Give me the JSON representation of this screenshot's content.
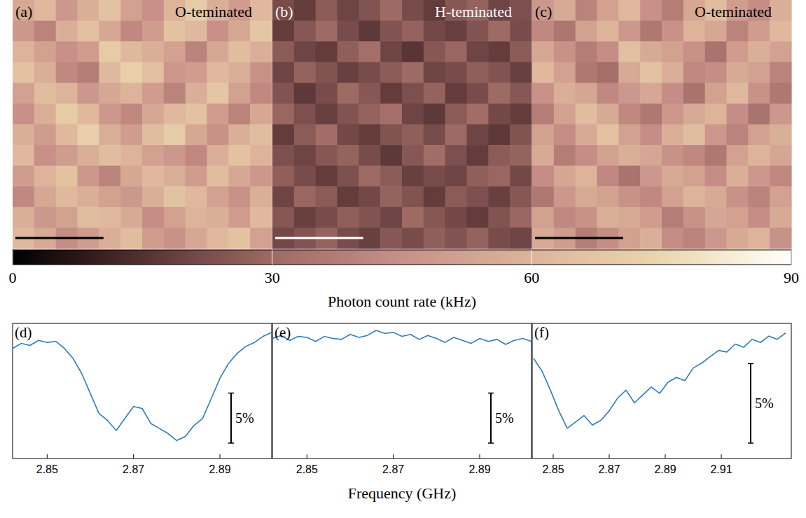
{
  "colorbar": {
    "range": [
      0,
      90
    ],
    "ticks": [
      0,
      30,
      60,
      90
    ],
    "label": "Photon count rate (kHz)"
  },
  "chart_data": [
    {
      "type": "heatmap",
      "panel_label": "(a)",
      "title": "O-teminated",
      "cells": [
        [
          55,
          62,
          48,
          58,
          66,
          52,
          45,
          60,
          70,
          58,
          50,
          62
        ],
        [
          48,
          40,
          58,
          65,
          55,
          42,
          50,
          66,
          62,
          45,
          55,
          68
        ],
        [
          60,
          52,
          45,
          50,
          70,
          62,
          58,
          52,
          40,
          55,
          64,
          58
        ],
        [
          66,
          58,
          42,
          38,
          62,
          72,
          65,
          48,
          50,
          62,
          58,
          46
        ],
        [
          52,
          64,
          60,
          48,
          55,
          60,
          50,
          40,
          58,
          68,
          52,
          42
        ],
        [
          45,
          58,
          70,
          62,
          48,
          42,
          55,
          62,
          66,
          50,
          40,
          55
        ],
        [
          58,
          50,
          62,
          72,
          58,
          50,
          64,
          70,
          55,
          46,
          58,
          64
        ],
        [
          62,
          45,
          50,
          58,
          64,
          60,
          52,
          48,
          42,
          58,
          66,
          60
        ],
        [
          50,
          60,
          66,
          48,
          40,
          55,
          62,
          58,
          50,
          64,
          55,
          48
        ],
        [
          42,
          55,
          62,
          58,
          52,
          48,
          58,
          66,
          62,
          52,
          46,
          58
        ],
        [
          58,
          48,
          52,
          64,
          62,
          56,
          44,
          52,
          60,
          58,
          50,
          62
        ],
        [
          62,
          56,
          44,
          50,
          58,
          64,
          50,
          46,
          55,
          62,
          66,
          52
        ]
      ]
    },
    {
      "type": "heatmap",
      "panel_label": "(b)",
      "title": "H-teminated",
      "cells": [
        [
          22,
          18,
          26,
          20,
          24,
          30,
          22,
          18,
          25,
          28,
          20,
          23
        ],
        [
          18,
          25,
          30,
          22,
          17,
          24,
          28,
          21,
          19,
          24,
          30,
          22
        ],
        [
          26,
          20,
          18,
          27,
          32,
          20,
          16,
          25,
          29,
          20,
          18,
          26
        ],
        [
          20,
          28,
          24,
          19,
          22,
          26,
          30,
          20,
          22,
          27,
          24,
          19
        ],
        [
          24,
          17,
          22,
          30,
          25,
          18,
          23,
          28,
          18,
          22,
          30,
          25
        ],
        [
          29,
          23,
          19,
          24,
          28,
          32,
          20,
          17,
          26,
          31,
          21,
          18
        ],
        [
          18,
          26,
          31,
          21,
          18,
          24,
          27,
          22,
          30,
          20,
          17,
          24
        ],
        [
          23,
          20,
          25,
          28,
          22,
          17,
          25,
          31,
          23,
          18,
          26,
          28
        ],
        [
          27,
          22,
          18,
          23,
          30,
          26,
          19,
          22,
          20,
          27,
          29,
          21
        ],
        [
          20,
          29,
          26,
          18,
          21,
          28,
          24,
          18,
          26,
          23,
          19,
          25
        ],
        [
          25,
          19,
          22,
          27,
          24,
          20,
          30,
          25,
          21,
          18,
          24,
          29
        ],
        [
          21,
          24,
          28,
          22,
          19,
          25,
          22,
          27,
          24,
          28,
          22,
          20
        ]
      ]
    },
    {
      "type": "heatmap",
      "panel_label": "(c)",
      "title": "O-teminated",
      "cells": [
        [
          48,
          56,
          40,
          52,
          62,
          45,
          38,
          55,
          64,
          50,
          44,
          58
        ],
        [
          42,
          35,
          52,
          60,
          48,
          36,
          46,
          60,
          55,
          40,
          50,
          62
        ],
        [
          55,
          46,
          38,
          44,
          65,
          56,
          52,
          46,
          34,
          50,
          58,
          52
        ],
        [
          62,
          52,
          36,
          32,
          56,
          66,
          58,
          42,
          44,
          56,
          52,
          40
        ],
        [
          46,
          58,
          54,
          42,
          48,
          55,
          44,
          34,
          52,
          62,
          46,
          36
        ],
        [
          38,
          52,
          64,
          56,
          42,
          36,
          48,
          56,
          60,
          44,
          34,
          48
        ],
        [
          52,
          44,
          56,
          66,
          52,
          44,
          58,
          64,
          48,
          40,
          52,
          58
        ],
        [
          56,
          38,
          44,
          52,
          58,
          54,
          46,
          42,
          36,
          52,
          60,
          54
        ],
        [
          44,
          54,
          60,
          42,
          34,
          48,
          56,
          52,
          44,
          58,
          48,
          42
        ],
        [
          36,
          48,
          56,
          52,
          46,
          42,
          52,
          60,
          56,
          46,
          40,
          52
        ],
        [
          52,
          42,
          46,
          58,
          56,
          50,
          38,
          46,
          54,
          52,
          44,
          56
        ],
        [
          56,
          50,
          38,
          44,
          52,
          58,
          44,
          40,
          48,
          56,
          60,
          46
        ]
      ]
    },
    {
      "type": "line",
      "panel_label": "(d)",
      "color": "#2e7dbf",
      "tick_labels": "x",
      "x": [
        2.842,
        2.844,
        2.846,
        2.848,
        2.85,
        2.852,
        2.854,
        2.856,
        2.858,
        2.86,
        2.862,
        2.864,
        2.866,
        2.868,
        2.87,
        2.872,
        2.874,
        2.876,
        2.878,
        2.88,
        2.882,
        2.884,
        2.886,
        2.888,
        2.89,
        2.892,
        2.894,
        2.896,
        2.898,
        2.9,
        2.902
      ],
      "values": [
        99.0,
        99.5,
        99.3,
        99.8,
        99.6,
        99.7,
        99.0,
        98.0,
        96.5,
        94.5,
        92.5,
        91.8,
        90.8,
        92.0,
        93.2,
        93.0,
        91.5,
        91.0,
        90.5,
        89.8,
        90.2,
        91.3,
        92.0,
        94.0,
        96.0,
        97.5,
        98.5,
        99.2,
        99.6,
        100.2,
        100.6
      ],
      "xlim": [
        2.842,
        2.902
      ],
      "ylim": [
        88,
        101.5
      ],
      "xticks": [
        2.85,
        2.87,
        2.89
      ],
      "scale_bar": {
        "value": 5,
        "label": "5%"
      }
    },
    {
      "type": "line",
      "panel_label": "(e)",
      "color": "#2e7dbf",
      "tick_labels": "x",
      "xlabel": "Frequency (GHz)",
      "x": [
        2.842,
        2.844,
        2.846,
        2.848,
        2.85,
        2.852,
        2.854,
        2.856,
        2.858,
        2.86,
        2.862,
        2.864,
        2.866,
        2.868,
        2.87,
        2.872,
        2.874,
        2.876,
        2.878,
        2.88,
        2.882,
        2.884,
        2.886,
        2.888,
        2.89,
        2.892,
        2.894,
        2.896,
        2.898,
        2.9,
        2.902
      ],
      "values": [
        100.0,
        100.3,
        99.8,
        100.2,
        100.1,
        99.7,
        100.2,
        100.0,
        99.9,
        100.4,
        100.1,
        100.3,
        100.8,
        100.5,
        100.6,
        100.2,
        100.4,
        99.9,
        100.3,
        100.0,
        99.6,
        100.1,
        99.8,
        99.5,
        100.0,
        99.7,
        99.9,
        99.4,
        99.8,
        100.0,
        99.7
      ],
      "xlim": [
        2.842,
        2.902
      ],
      "ylim": [
        88,
        101.5
      ],
      "xticks": [
        2.85,
        2.87,
        2.89
      ],
      "scale_bar": {
        "value": 5,
        "label": "5%"
      }
    },
    {
      "type": "line",
      "panel_label": "(f)",
      "color": "#2e7dbf",
      "tick_labels": "x",
      "x": [
        2.843,
        2.846,
        2.849,
        2.852,
        2.855,
        2.858,
        2.861,
        2.864,
        2.867,
        2.87,
        2.873,
        2.876,
        2.879,
        2.882,
        2.885,
        2.888,
        2.891,
        2.894,
        2.897,
        2.9,
        2.903,
        2.906,
        2.909,
        2.912,
        2.915,
        2.918,
        2.921,
        2.924,
        2.927,
        2.93,
        2.933
      ],
      "values": [
        98.8,
        98.0,
        96.8,
        95.5,
        94.4,
        94.8,
        95.2,
        94.6,
        94.9,
        95.5,
        96.3,
        96.8,
        96.0,
        96.5,
        97.0,
        96.6,
        97.3,
        97.6,
        97.4,
        98.2,
        98.5,
        98.9,
        99.3,
        99.2,
        99.7,
        99.5,
        100.0,
        99.8,
        100.2,
        100.0,
        100.4
      ],
      "xlim": [
        2.8425,
        2.935
      ],
      "ylim": [
        92.5,
        101
      ],
      "xticks": [
        2.85,
        2.87,
        2.89,
        2.91
      ],
      "scale_bar": {
        "value": 5,
        "label": "5%"
      }
    }
  ]
}
